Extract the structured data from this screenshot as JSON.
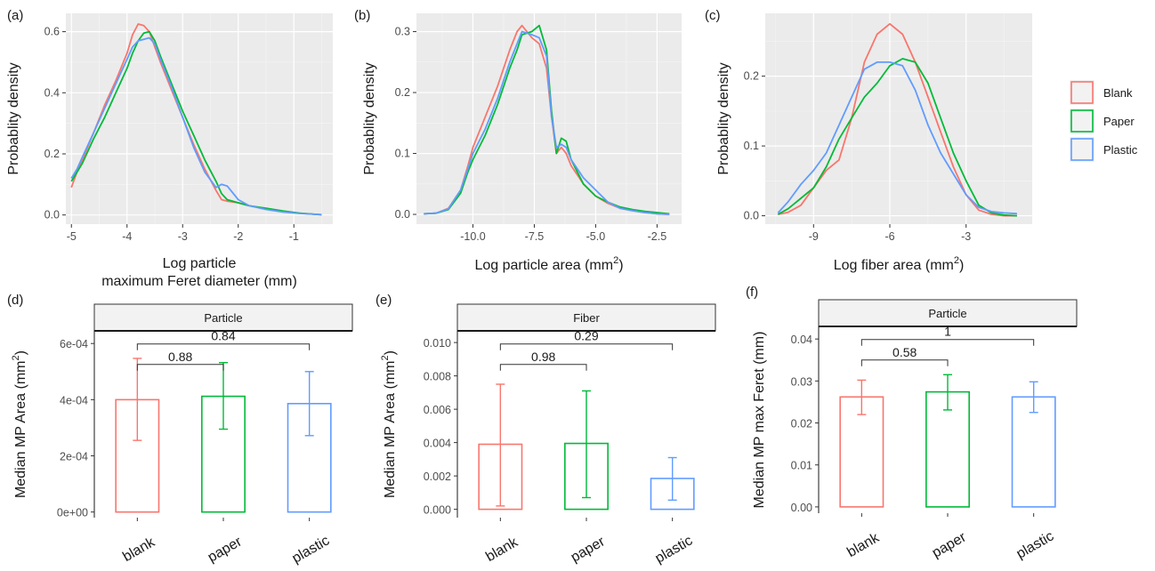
{
  "colors": {
    "Blank": "#F8766D",
    "Paper": "#00BA38",
    "Plastic": "#619CFF"
  },
  "legend": {
    "items": [
      "Blank",
      "Paper",
      "Plastic"
    ],
    "position": "right"
  },
  "chart_data": [
    {
      "type": "line",
      "panel_label": "(a)",
      "xlabel": "Log particle\nmaximum Feret diameter (mm)",
      "ylabel": "Probablity density",
      "xlim": [
        -5.1,
        -0.3
      ],
      "ylim": [
        -0.03,
        0.66
      ],
      "xticks": [
        -5,
        -4,
        -3,
        -2,
        -1
      ],
      "yticks": [
        0.0,
        0.2,
        0.4,
        0.6
      ],
      "ytick_labels": [
        "0.0",
        "0.2",
        "0.4",
        "0.6"
      ],
      "grid": true,
      "series": [
        {
          "name": "Blank",
          "x": [
            -5,
            -4.9,
            -4.8,
            -4.6,
            -4.4,
            -4.2,
            -4.0,
            -3.9,
            -3.8,
            -3.7,
            -3.6,
            -3.5,
            -3.4,
            -3.2,
            -3.0,
            -2.8,
            -2.6,
            -2.4,
            -2.3,
            -2.2,
            -2.0,
            -1.8,
            -1.5,
            -1.2,
            -0.9,
            -0.6,
            -0.5
          ],
          "y": [
            0.09,
            0.14,
            0.18,
            0.27,
            0.36,
            0.44,
            0.53,
            0.59,
            0.625,
            0.62,
            0.6,
            0.55,
            0.5,
            0.41,
            0.32,
            0.23,
            0.15,
            0.08,
            0.05,
            0.045,
            0.04,
            0.03,
            0.02,
            0.012,
            0.006,
            0.002,
            0.001
          ]
        },
        {
          "name": "Paper",
          "x": [
            -5,
            -4.9,
            -4.8,
            -4.6,
            -4.4,
            -4.2,
            -4.0,
            -3.9,
            -3.8,
            -3.7,
            -3.6,
            -3.5,
            -3.4,
            -3.2,
            -3.0,
            -2.8,
            -2.6,
            -2.4,
            -2.3,
            -2.2,
            -2.0,
            -1.8,
            -1.5,
            -1.2,
            -0.9,
            -0.6,
            -0.5
          ],
          "y": [
            0.11,
            0.14,
            0.17,
            0.25,
            0.32,
            0.4,
            0.48,
            0.53,
            0.57,
            0.595,
            0.6,
            0.57,
            0.52,
            0.43,
            0.34,
            0.26,
            0.18,
            0.11,
            0.07,
            0.05,
            0.04,
            0.03,
            0.022,
            0.013,
            0.006,
            0.002,
            0.001
          ]
        },
        {
          "name": "Plastic",
          "x": [
            -5,
            -4.9,
            -4.8,
            -4.6,
            -4.4,
            -4.2,
            -4.0,
            -3.9,
            -3.8,
            -3.7,
            -3.6,
            -3.5,
            -3.4,
            -3.2,
            -3.0,
            -2.8,
            -2.6,
            -2.4,
            -2.3,
            -2.2,
            -2.0,
            -1.8,
            -1.5,
            -1.2,
            -0.9,
            -0.6,
            -0.5
          ],
          "y": [
            0.12,
            0.15,
            0.19,
            0.27,
            0.35,
            0.43,
            0.51,
            0.55,
            0.57,
            0.575,
            0.58,
            0.56,
            0.51,
            0.42,
            0.32,
            0.22,
            0.14,
            0.09,
            0.1,
            0.095,
            0.05,
            0.03,
            0.018,
            0.01,
            0.005,
            0.002,
            0.001
          ]
        }
      ]
    },
    {
      "type": "line",
      "panel_label": "(b)",
      "xlabel": "Log particle area (mm",
      "xlabel_sup": "2",
      "xlabel_end": ")",
      "ylabel": "Probablity density",
      "xlim": [
        -12.3,
        -1.5
      ],
      "ylim": [
        -0.016,
        0.33
      ],
      "xticks": [
        -10.0,
        -7.5,
        -5.0,
        -2.5
      ],
      "xtick_labels": [
        "-10.0",
        "-7.5",
        "-5.0",
        "-2.5"
      ],
      "yticks": [
        0.0,
        0.1,
        0.2,
        0.3
      ],
      "ytick_labels": [
        "0.0",
        "0.1",
        "0.2",
        "0.3"
      ],
      "grid": true,
      "series": [
        {
          "name": "Blank",
          "x": [
            -12,
            -11.5,
            -11,
            -10.5,
            -10.2,
            -10,
            -9.5,
            -9,
            -8.5,
            -8.2,
            -8,
            -7.6,
            -7.3,
            -7,
            -6.8,
            -6.6,
            -6.4,
            -6.2,
            -6,
            -5.5,
            -5,
            -4.5,
            -4,
            -3.5,
            -3,
            -2.5,
            -2
          ],
          "y": [
            0.001,
            0.002,
            0.01,
            0.04,
            0.08,
            0.11,
            0.16,
            0.21,
            0.27,
            0.3,
            0.31,
            0.29,
            0.28,
            0.24,
            0.16,
            0.1,
            0.11,
            0.1,
            0.08,
            0.05,
            0.03,
            0.018,
            0.01,
            0.006,
            0.003,
            0.001,
            0.0
          ]
        },
        {
          "name": "Paper",
          "x": [
            -12,
            -11.5,
            -11,
            -10.5,
            -10.2,
            -10,
            -9.5,
            -9,
            -8.5,
            -8.2,
            -8,
            -7.6,
            -7.3,
            -7,
            -6.8,
            -6.6,
            -6.4,
            -6.2,
            -6,
            -5.5,
            -5,
            -4.5,
            -4,
            -3.5,
            -3,
            -2.5,
            -2
          ],
          "y": [
            0.001,
            0.002,
            0.008,
            0.035,
            0.07,
            0.09,
            0.13,
            0.18,
            0.24,
            0.27,
            0.295,
            0.3,
            0.31,
            0.27,
            0.17,
            0.1,
            0.125,
            0.12,
            0.09,
            0.05,
            0.03,
            0.02,
            0.012,
            0.008,
            0.005,
            0.003,
            0.001
          ]
        },
        {
          "name": "Plastic",
          "x": [
            -12,
            -11.5,
            -11,
            -10.5,
            -10.2,
            -10,
            -9.5,
            -9,
            -8.5,
            -8.2,
            -8,
            -7.6,
            -7.3,
            -7,
            -6.8,
            -6.6,
            -6.4,
            -6.2,
            -6,
            -5.5,
            -5,
            -4.5,
            -4,
            -3.5,
            -3,
            -2.5,
            -2
          ],
          "y": [
            0.001,
            0.002,
            0.009,
            0.04,
            0.075,
            0.1,
            0.14,
            0.19,
            0.25,
            0.28,
            0.3,
            0.295,
            0.29,
            0.26,
            0.16,
            0.11,
            0.115,
            0.11,
            0.09,
            0.06,
            0.04,
            0.02,
            0.01,
            0.006,
            0.003,
            0.001,
            0.0
          ]
        }
      ]
    },
    {
      "type": "line",
      "panel_label": "(c)",
      "xlabel": "Log fiber area (mm",
      "xlabel_sup": "2",
      "xlabel_end": ")",
      "ylabel": "Probablity density",
      "xlim": [
        -10.9,
        -0.4
      ],
      "ylim": [
        -0.012,
        0.29
      ],
      "xticks": [
        -9,
        -6,
        -3
      ],
      "yticks": [
        0.0,
        0.1,
        0.2
      ],
      "ytick_labels": [
        "0.0",
        "0.1",
        "0.2"
      ],
      "grid": true,
      "series": [
        {
          "name": "Blank",
          "x": [
            -10.4,
            -10,
            -9.5,
            -9,
            -8.5,
            -8,
            -7.5,
            -7,
            -6.5,
            -6,
            -5.5,
            -5,
            -4.5,
            -4,
            -3.5,
            -3,
            -2.5,
            -2,
            -1.5,
            -1
          ],
          "y": [
            0.002,
            0.005,
            0.015,
            0.04,
            0.065,
            0.08,
            0.14,
            0.22,
            0.26,
            0.275,
            0.26,
            0.22,
            0.17,
            0.12,
            0.07,
            0.03,
            0.008,
            0.002,
            0.0,
            0.0
          ]
        },
        {
          "name": "Paper",
          "x": [
            -10.4,
            -10,
            -9.5,
            -9,
            -8.5,
            -8,
            -7.5,
            -7,
            -6.5,
            -6,
            -5.5,
            -5,
            -4.5,
            -4,
            -3.5,
            -3,
            -2.5,
            -2,
            -1.5,
            -1
          ],
          "y": [
            0.002,
            0.01,
            0.025,
            0.04,
            0.07,
            0.11,
            0.14,
            0.17,
            0.19,
            0.215,
            0.225,
            0.22,
            0.19,
            0.14,
            0.09,
            0.05,
            0.015,
            0.004,
            0.001,
            0.0
          ]
        },
        {
          "name": "Plastic",
          "x": [
            -10.4,
            -10,
            -9.5,
            -9,
            -8.5,
            -8,
            -7.5,
            -7,
            -6.5,
            -6,
            -5.5,
            -5,
            -4.5,
            -4,
            -3.5,
            -3,
            -2.5,
            -2,
            -1.5,
            -1
          ],
          "y": [
            0.004,
            0.02,
            0.045,
            0.065,
            0.09,
            0.13,
            0.17,
            0.21,
            0.22,
            0.22,
            0.215,
            0.18,
            0.13,
            0.09,
            0.06,
            0.03,
            0.012,
            0.006,
            0.004,
            0.003
          ]
        }
      ]
    },
    {
      "type": "bar",
      "panel_label": "(d)",
      "strip": "Particle",
      "ylabel": "Median MP Area (mm",
      "ylabel_sup": "2",
      "ylabel_end": ")",
      "categories": [
        "blank",
        "paper",
        "plastic"
      ],
      "values": [
        0.0004,
        0.000412,
        0.000386
      ],
      "err_low": [
        0.000255,
        0.000295,
        0.000272
      ],
      "err_high": [
        0.000547,
        0.000532,
        0.0005
      ],
      "ylim": [
        -2e-05,
        0.000645
      ],
      "yticks": [
        0.0,
        0.0002,
        0.0004,
        0.0006
      ],
      "ytick_labels": [
        "0e+00",
        "2e-04",
        "4e-04",
        "6e-04"
      ],
      "comparisons": [
        {
          "from": "blank",
          "to": "paper",
          "label": "0.88"
        },
        {
          "from": "blank",
          "to": "plastic",
          "label": "0.84"
        }
      ]
    },
    {
      "type": "bar",
      "panel_label": "(e)",
      "strip": "Fiber",
      "ylabel": "Median MP Area (mm",
      "ylabel_sup": "2",
      "ylabel_end": ")",
      "categories": [
        "blank",
        "paper",
        "plastic"
      ],
      "values": [
        0.0039,
        0.00395,
        0.00185
      ],
      "err_low": [
        0.0002,
        0.0007,
        0.00055
      ],
      "err_high": [
        0.0075,
        0.0071,
        0.0031
      ],
      "ylim": [
        -0.0005,
        0.0107
      ],
      "yticks": [
        0.0,
        0.002,
        0.004,
        0.006,
        0.008,
        0.01
      ],
      "ytick_labels": [
        "0.000",
        "0.002",
        "0.004",
        "0.006",
        "0.008",
        "0.010"
      ],
      "comparisons": [
        {
          "from": "blank",
          "to": "paper",
          "label": "0.98"
        },
        {
          "from": "blank",
          "to": "plastic",
          "label": "0.29"
        }
      ]
    },
    {
      "type": "bar",
      "panel_label": "(f)",
      "strip": "Particle",
      "ylabel": "Median MP max Feret (mm)",
      "categories": [
        "blank",
        "paper",
        "plastic"
      ],
      "values": [
        0.0262,
        0.0274,
        0.0262
      ],
      "err_low": [
        0.022,
        0.0231,
        0.0225
      ],
      "err_high": [
        0.0302,
        0.0315,
        0.0298
      ],
      "ylim": [
        -0.0015,
        0.043
      ],
      "yticks": [
        0.0,
        0.01,
        0.02,
        0.03,
        0.04
      ],
      "ytick_labels": [
        "0.00",
        "0.01",
        "0.02",
        "0.03",
        "0.04"
      ],
      "comparisons": [
        {
          "from": "blank",
          "to": "paper",
          "label": "0.58"
        },
        {
          "from": "blank",
          "to": "plastic",
          "label": "1"
        }
      ]
    }
  ]
}
